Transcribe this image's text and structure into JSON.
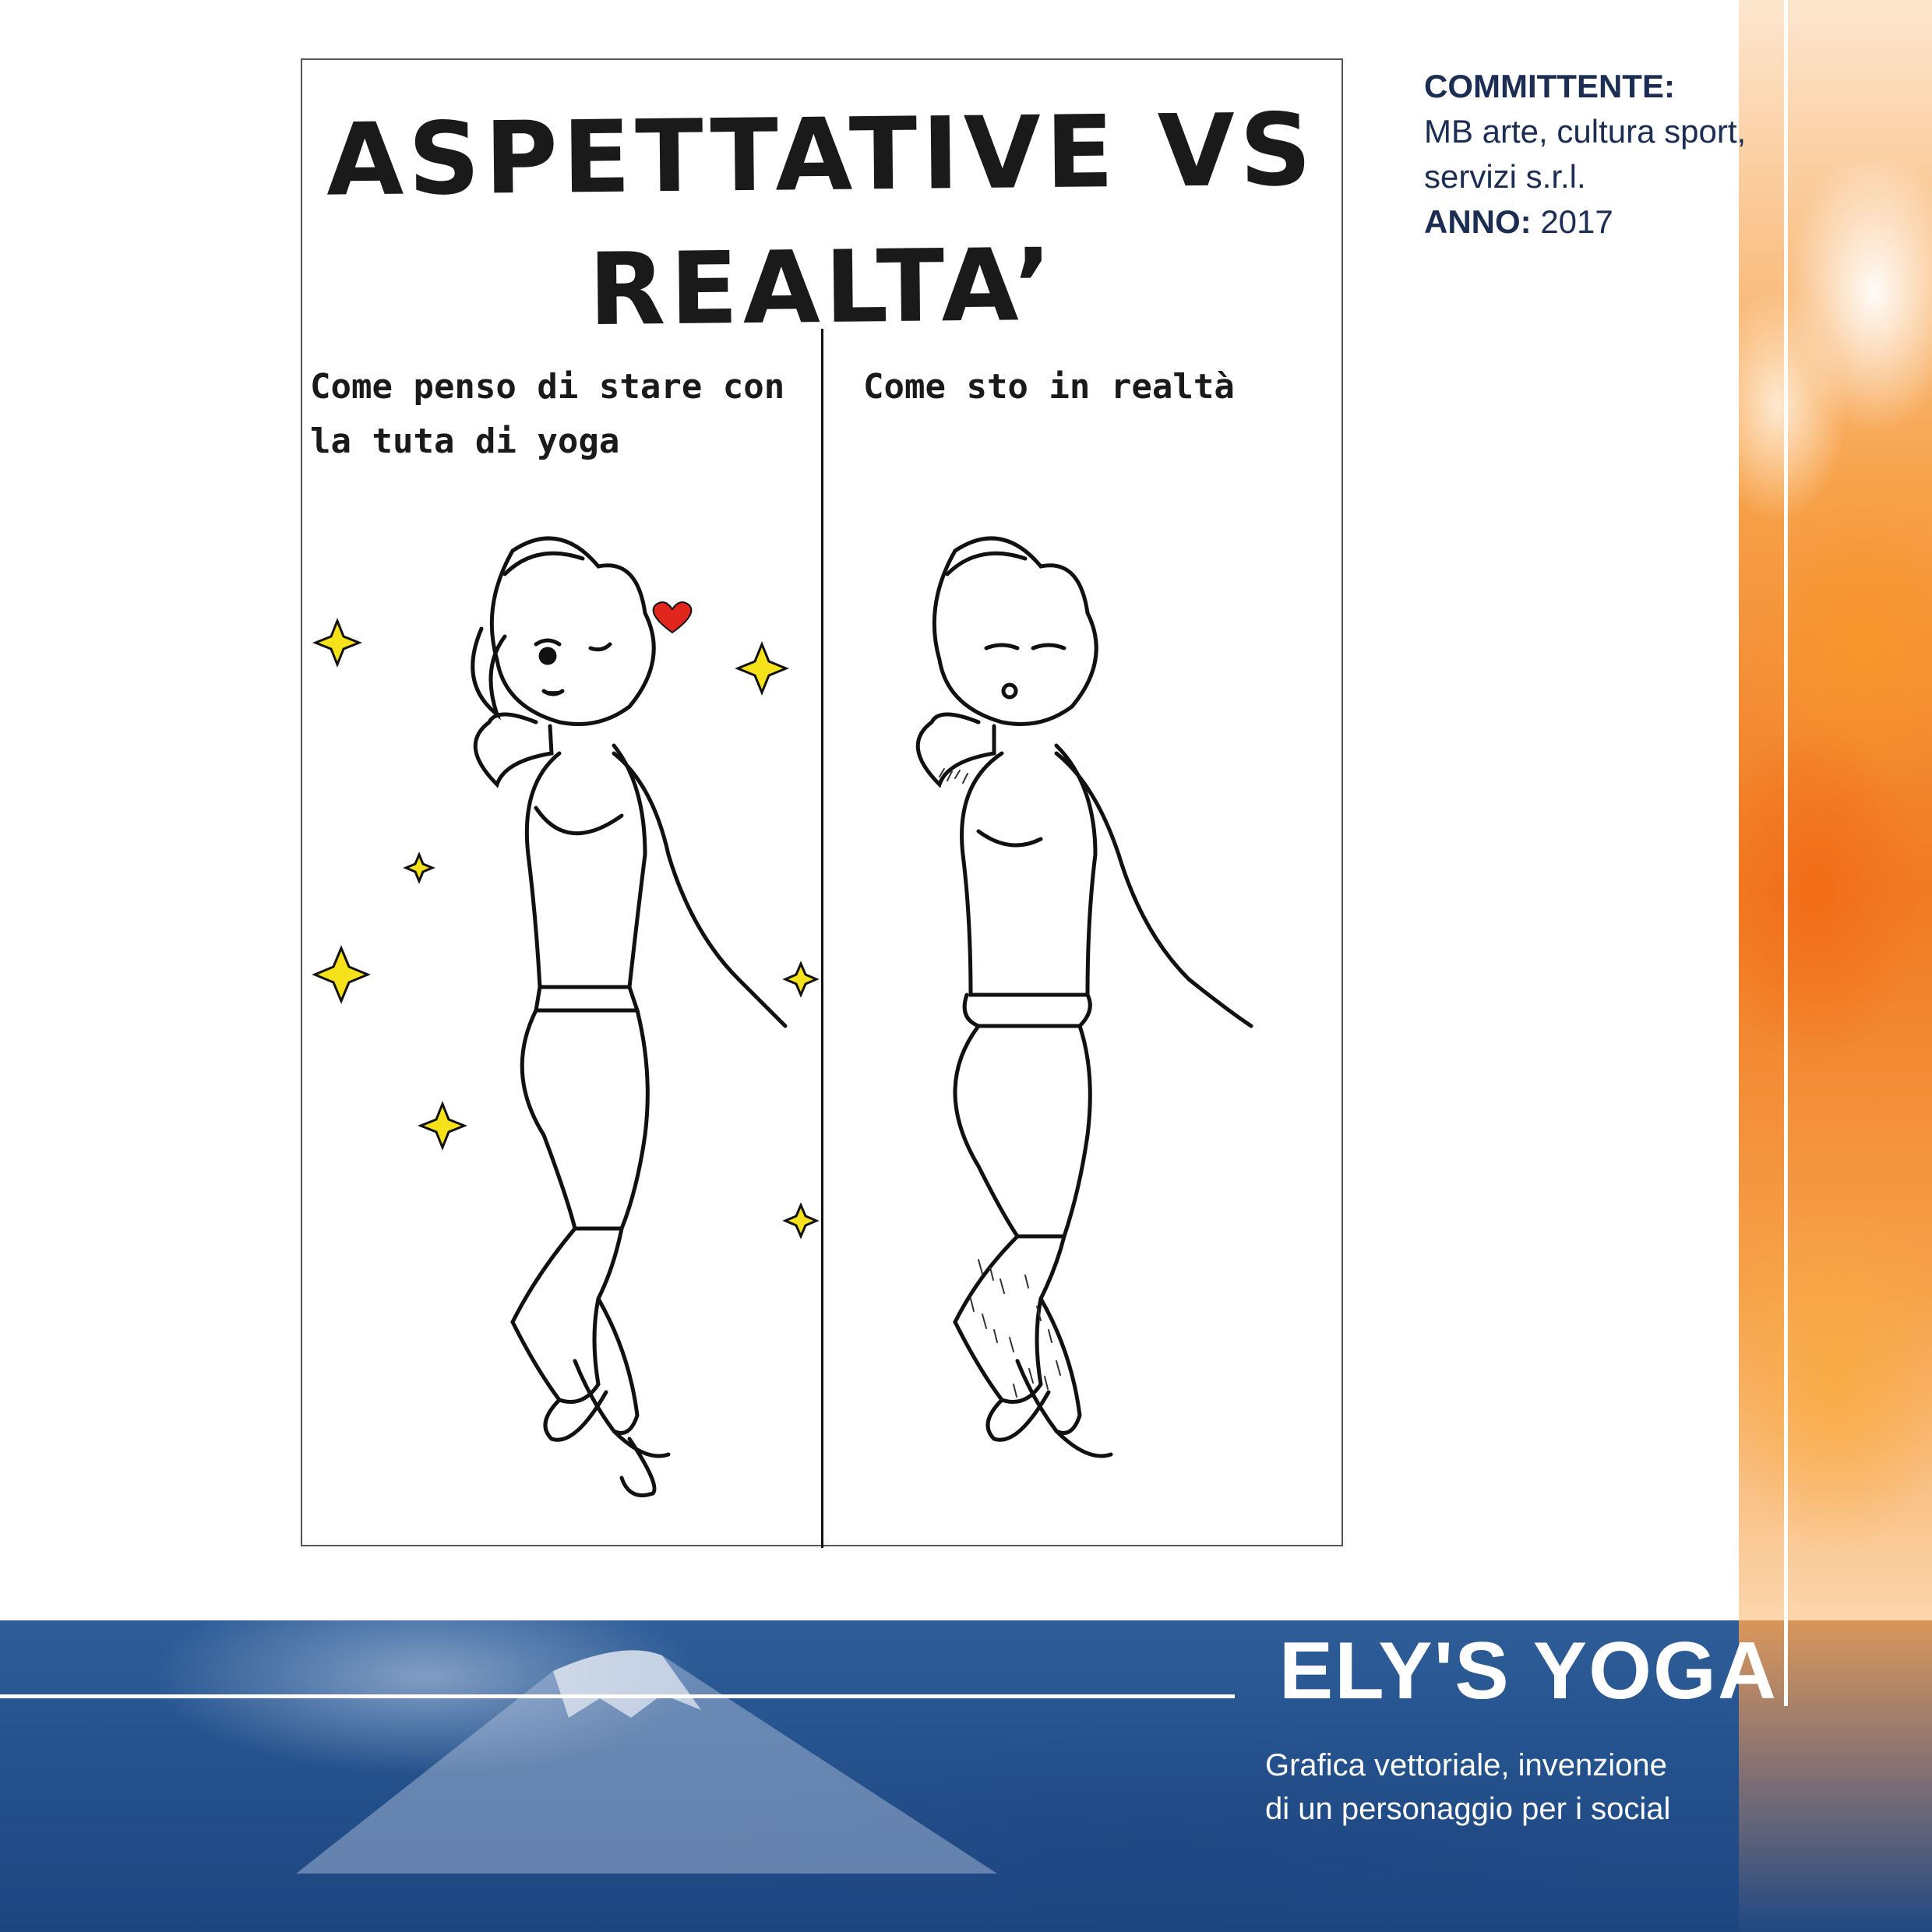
{
  "comic": {
    "title": "ASPETTATIVE VS\nREALTA’",
    "caption_left": "Come penso di stare con la tuta di yoga",
    "caption_right": "Come sto in realtà"
  },
  "client": {
    "label_committente": "COMMITTENTE:",
    "committente_value": "MB arte, cultura sport, servizi s.r.l.",
    "label_anno": "ANNO:",
    "anno_value": "2017"
  },
  "project": {
    "title": "ELY'S YOGA",
    "description": "Grafica vettoriale, invenzione\ndi un personaggio per i social"
  },
  "colors": {
    "navy_text": "#1b2d52",
    "orange_accent": "#f07a22",
    "band_blue": "#25538e",
    "sparkle_yellow": "#f5e21b",
    "heart_red": "#e0261d"
  }
}
